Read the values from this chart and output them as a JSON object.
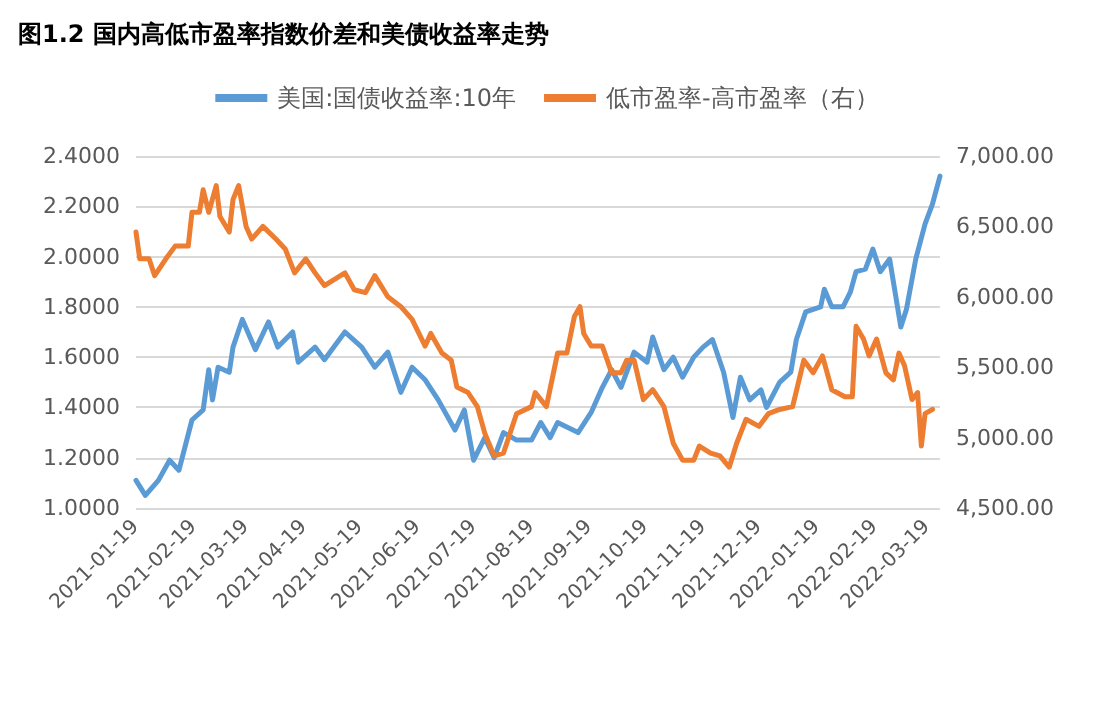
{
  "chart_data": {
    "type": "line",
    "title": "图1.2 国内高低市盈率指数价差和美债收益率走势",
    "xlim": [
      "2021-01-19",
      "2022-03-26"
    ],
    "xticks": [
      "2021-01-19",
      "2021-02-19",
      "2021-03-19",
      "2021-04-19",
      "2021-05-19",
      "2021-06-19",
      "2021-07-19",
      "2021-08-19",
      "2021-09-19",
      "2021-10-19",
      "2021-11-19",
      "2021-12-19",
      "2022-01-19",
      "2022-02-19",
      "2022-03-19"
    ],
    "ylim": [
      1.0,
      2.4
    ],
    "yticks": [
      {
        "value": 1.0,
        "label": "1.0000"
      },
      {
        "value": 1.2,
        "label": "1.2000"
      },
      {
        "value": 1.4,
        "label": "1.4000"
      },
      {
        "value": 1.6,
        "label": "1.6000"
      },
      {
        "value": 1.8,
        "label": "1.8000"
      },
      {
        "value": 2.0,
        "label": "2.0000"
      },
      {
        "value": 2.2,
        "label": "2.2000"
      },
      {
        "value": 2.4,
        "label": "2.4000"
      }
    ],
    "y2lim": [
      4500,
      7000
    ],
    "y2ticks": [
      {
        "value": 4500,
        "label": "4,500.00"
      },
      {
        "value": 5000,
        "label": "5,000.00"
      },
      {
        "value": 5500,
        "label": "5,500.00"
      },
      {
        "value": 6000,
        "label": "6,000.00"
      },
      {
        "value": 6500,
        "label": "6,500.00"
      },
      {
        "value": 7000,
        "label": "7,000.00"
      }
    ],
    "grid": "y",
    "legend": "top",
    "marker": "none",
    "line_style": "solid",
    "series": [
      {
        "name": "美国:国债收益率:10年",
        "color": "#5b9bd5",
        "x": [
          "2021-01-19",
          "2021-01-24",
          "2021-01-31",
          "2021-02-06",
          "2021-02-11",
          "2021-02-18",
          "2021-02-24",
          "2021-02-27",
          "2021-03-01",
          "2021-03-04",
          "2021-03-10",
          "2021-03-12",
          "2021-03-17",
          "2021-03-24",
          "2021-03-31",
          "2021-04-05",
          "2021-04-13",
          "2021-04-16",
          "2021-04-25",
          "2021-04-30",
          "2021-05-11",
          "2021-05-20",
          "2021-05-27",
          "2021-06-03",
          "2021-06-10",
          "2021-06-16",
          "2021-06-23",
          "2021-06-30",
          "2021-07-09",
          "2021-07-14",
          "2021-07-19",
          "2021-07-25",
          "2021-07-30",
          "2021-08-04",
          "2021-08-11",
          "2021-08-19",
          "2021-08-24",
          "2021-08-29",
          "2021-09-02",
          "2021-09-13",
          "2021-09-20",
          "2021-09-26",
          "2021-10-01",
          "2021-10-06",
          "2021-10-13",
          "2021-10-20",
          "2021-10-23",
          "2021-10-29",
          "2021-11-03",
          "2021-11-08",
          "2021-11-14",
          "2021-11-19",
          "2021-11-24",
          "2021-11-30",
          "2021-12-05",
          "2021-12-09",
          "2021-12-14",
          "2021-12-20",
          "2021-12-23",
          "2021-12-30",
          "2022-01-05",
          "2022-01-08",
          "2022-01-13",
          "2022-01-21",
          "2022-01-23",
          "2022-01-27",
          "2022-02-02",
          "2022-02-06",
          "2022-02-09",
          "2022-02-14",
          "2022-02-18",
          "2022-02-22",
          "2022-02-27",
          "2022-03-05",
          "2022-03-08",
          "2022-03-13",
          "2022-03-18",
          "2022-03-22",
          "2022-03-26"
        ],
        "values": [
          1.11,
          1.05,
          1.11,
          1.19,
          1.15,
          1.35,
          1.39,
          1.55,
          1.43,
          1.56,
          1.54,
          1.64,
          1.75,
          1.63,
          1.74,
          1.64,
          1.7,
          1.58,
          1.64,
          1.59,
          1.7,
          1.64,
          1.56,
          1.62,
          1.46,
          1.56,
          1.51,
          1.43,
          1.31,
          1.39,
          1.19,
          1.28,
          1.2,
          1.3,
          1.27,
          1.27,
          1.34,
          1.28,
          1.34,
          1.3,
          1.38,
          1.48,
          1.55,
          1.48,
          1.62,
          1.58,
          1.68,
          1.55,
          1.6,
          1.52,
          1.6,
          1.64,
          1.67,
          1.54,
          1.36,
          1.52,
          1.43,
          1.47,
          1.4,
          1.5,
          1.54,
          1.67,
          1.78,
          1.8,
          1.87,
          1.8,
          1.8,
          1.86,
          1.94,
          1.95,
          2.03,
          1.94,
          1.99,
          1.72,
          1.79,
          1.99,
          2.13,
          2.21,
          2.32
        ]
      },
      {
        "name": "低市盈率-高市盈率（右）",
        "color": "#ed7d31",
        "axis": "y2",
        "x": [
          "2021-01-19",
          "2021-01-21",
          "2021-01-26",
          "2021-01-29",
          "2021-02-04",
          "2021-02-09",
          "2021-02-16",
          "2021-02-18",
          "2021-02-22",
          "2021-02-24",
          "2021-02-27",
          "2021-03-03",
          "2021-03-05",
          "2021-03-10",
          "2021-03-12",
          "2021-03-15",
          "2021-03-19",
          "2021-03-22",
          "2021-03-28",
          "2021-04-04",
          "2021-04-09",
          "2021-04-14",
          "2021-04-20",
          "2021-04-25",
          "2021-04-30",
          "2021-05-11",
          "2021-05-16",
          "2021-05-22",
          "2021-05-27",
          "2021-06-03",
          "2021-06-10",
          "2021-06-16",
          "2021-06-23",
          "2021-06-26",
          "2021-07-02",
          "2021-07-07",
          "2021-07-10",
          "2021-07-16",
          "2021-07-21",
          "2021-07-25",
          "2021-07-30",
          "2021-08-04",
          "2021-08-11",
          "2021-08-19",
          "2021-08-21",
          "2021-08-27",
          "2021-09-02",
          "2021-09-07",
          "2021-09-11",
          "2021-09-14",
          "2021-09-16",
          "2021-09-20",
          "2021-09-26",
          "2021-10-01",
          "2021-10-06",
          "2021-10-09",
          "2021-10-13",
          "2021-10-18",
          "2021-10-23",
          "2021-10-29",
          "2021-11-03",
          "2021-11-08",
          "2021-11-14",
          "2021-11-17",
          "2021-11-23",
          "2021-11-28",
          "2021-12-03",
          "2021-12-07",
          "2021-12-12",
          "2021-12-19",
          "2021-12-24",
          "2021-12-30",
          "2022-01-06",
          "2022-01-12",
          "2022-01-17",
          "2022-01-22",
          "2022-01-27",
          "2022-02-03",
          "2022-02-07",
          "2022-02-09",
          "2022-02-13",
          "2022-02-16",
          "2022-02-20",
          "2022-02-25",
          "2022-03-01",
          "2022-03-04",
          "2022-03-07",
          "2022-03-11",
          "2022-03-14",
          "2022-03-16",
          "2022-03-18",
          "2022-03-22"
        ],
        "values": [
          6460,
          6270,
          6270,
          6150,
          6270,
          6360,
          6360,
          6600,
          6600,
          6760,
          6600,
          6790,
          6570,
          6460,
          6690,
          6790,
          6500,
          6410,
          6500,
          6410,
          6340,
          6170,
          6270,
          6170,
          6080,
          6170,
          6050,
          6030,
          6150,
          6000,
          5930,
          5840,
          5650,
          5740,
          5600,
          5550,
          5360,
          5320,
          5220,
          5030,
          4870,
          4890,
          5170,
          5220,
          5320,
          5220,
          5600,
          5600,
          5860,
          5930,
          5740,
          5650,
          5650,
          5460,
          5460,
          5550,
          5550,
          5270,
          5340,
          5220,
          4960,
          4840,
          4840,
          4940,
          4890,
          4870,
          4790,
          4960,
          5130,
          5080,
          5170,
          5200,
          5220,
          5550,
          5460,
          5580,
          5340,
          5290,
          5290,
          5790,
          5700,
          5580,
          5700,
          5460,
          5410,
          5600,
          5510,
          5270,
          5320,
          4940,
          5170,
          5200
        ]
      }
    ]
  }
}
